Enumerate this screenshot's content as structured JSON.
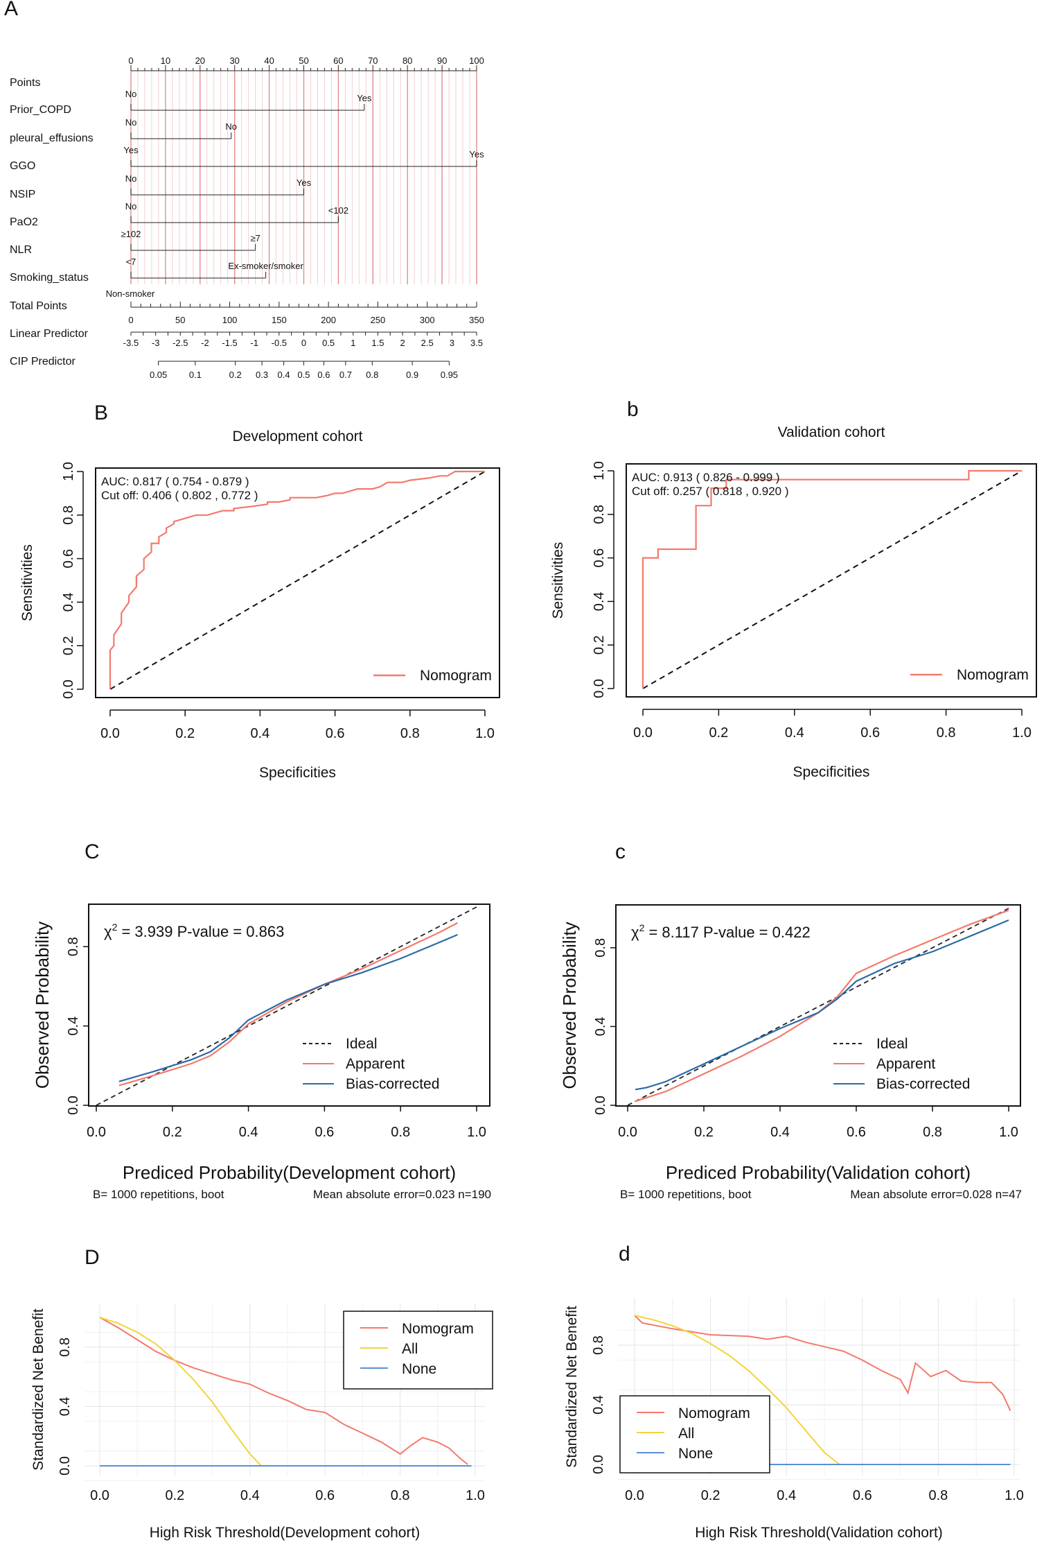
{
  "colors": {
    "nomogram": "#f4796b",
    "all": "#f2d43c",
    "none": "#5b8fd6",
    "grid": "#e8e8e8",
    "axis": "#333333",
    "redline": "#e48a8a",
    "blue": "#2a6aa8"
  },
  "chart_data": [
    {
      "panel_id": "A",
      "type": "nomogram",
      "scales": [
        {
          "name": "Points",
          "ticks": [
            "0",
            "10",
            "20",
            "30",
            "40",
            "50",
            "60",
            "70",
            "80",
            "90",
            "100"
          ],
          "tick_values": [
            0,
            10,
            20,
            30,
            40,
            50,
            60,
            70,
            80,
            90,
            100
          ]
        },
        {
          "name": "Prior_COPD",
          "levels": [
            {
              "label": "No",
              "points": 0
            },
            {
              "label": "Yes",
              "points": 67.5
            }
          ]
        },
        {
          "name": "pleural_effusions",
          "levels": [
            {
              "label": "No",
              "points": 0
            },
            {
              "label": "No",
              "points": 29
            }
          ]
        },
        {
          "name": "GGO",
          "levels": [
            {
              "label": "Yes",
              "points": 0
            },
            {
              "label": "Yes",
              "points": 100
            }
          ]
        },
        {
          "name": "NSIP",
          "levels": [
            {
              "label": "No",
              "points": 0
            },
            {
              "label": "Yes",
              "points": 50
            }
          ]
        },
        {
          "name": "PaO2",
          "levels": [
            {
              "label": "No",
              "points": 0
            },
            {
              "label": "<102",
              "points": 60
            }
          ]
        },
        {
          "name": "NLR",
          "levels": [
            {
              "label": "≥102",
              "points": 0
            },
            {
              "label": "≥7",
              "points": 36
            }
          ]
        },
        {
          "name": "Smoking_status",
          "levels": [
            {
              "label": "<7",
              "points": 0
            },
            {
              "label": "Ex-smoker/smoker",
              "points": 39
            }
          ]
        },
        {
          "name": "Total Points",
          "ticks": [
            "0",
            "50",
            "100",
            "150",
            "200",
            "250",
            "300",
            "350"
          ],
          "tick_values": [
            0,
            50,
            100,
            150,
            200,
            250,
            300,
            350
          ],
          "extra_label": "Non-smoker"
        },
        {
          "name": "Linear Predictor",
          "ticks": [
            "-3.5",
            "-3",
            "-2.5",
            "-2",
            "-1.5",
            "-1",
            "-0.5",
            "0",
            "0.5",
            "1",
            "1.5",
            "2",
            "2.5",
            "3",
            "3.5"
          ],
          "tick_values": [
            -3.5,
            -3,
            -2.5,
            -2,
            -1.5,
            -1,
            -0.5,
            0,
            0.5,
            1,
            1.5,
            2,
            2.5,
            3,
            3.5
          ]
        },
        {
          "name": "CIP Predictor",
          "ticks": [
            "0.05",
            "0.1",
            "0.2",
            "0.3",
            "0.4",
            "0.5",
            "0.6",
            "0.7",
            "0.8",
            "0.9",
            "0.95"
          ],
          "tick_values": [
            0.05,
            0.1,
            0.2,
            0.3,
            0.4,
            0.5,
            0.6,
            0.7,
            0.8,
            0.9,
            0.95
          ]
        }
      ],
      "points_range": [
        0,
        100
      ],
      "total_range": [
        0,
        350
      ],
      "lp_range": [
        -3.5,
        3.5
      ],
      "lp_per_total": 0.02
    },
    {
      "panel_id": "B",
      "type": "roc",
      "title": "Development cohort",
      "xlabel": "Specificities",
      "ylabel": "Sensitivities",
      "xlim": [
        0,
        1
      ],
      "ylim": [
        0,
        1
      ],
      "x_reversed": false,
      "ticks": [
        "0.0",
        "0.2",
        "0.4",
        "0.6",
        "0.8",
        "1.0"
      ],
      "tick_values": [
        0,
        0.2,
        0.4,
        0.6,
        0.8,
        1.0
      ],
      "auc_text": "AUC: 0.817 ( 0.754 - 0.879 )",
      "cutoff_text": "Cut off: 0.406 ( 0.802 , 0.772 )",
      "legend": "Nomogram",
      "series": [
        {
          "name": "Nomogram",
          "x": [
            0,
            0,
            0.01,
            0.01,
            0.03,
            0.03,
            0.05,
            0.05,
            0.07,
            0.07,
            0.09,
            0.09,
            0.11,
            0.11,
            0.13,
            0.13,
            0.15,
            0.15,
            0.17,
            0.17,
            0.19,
            0.19,
            0.21,
            0.21,
            0.23,
            0.23,
            0.26,
            0.3,
            0.33,
            0.33,
            0.38,
            0.42,
            0.42,
            0.45,
            0.48,
            0.48,
            0.52,
            0.55,
            0.58,
            0.6,
            0.62,
            0.66,
            0.7,
            0.72,
            0.74,
            0.78,
            0.8,
            0.85,
            0.88,
            0.9,
            0.92,
            0.97,
            1.0
          ],
          "y": [
            0,
            0.18,
            0.2,
            0.25,
            0.3,
            0.35,
            0.4,
            0.43,
            0.47,
            0.52,
            0.55,
            0.6,
            0.63,
            0.67,
            0.67,
            0.7,
            0.72,
            0.74,
            0.76,
            0.77,
            0.78,
            0.78,
            0.79,
            0.79,
            0.8,
            0.8,
            0.8,
            0.82,
            0.82,
            0.83,
            0.84,
            0.85,
            0.86,
            0.86,
            0.87,
            0.88,
            0.88,
            0.88,
            0.89,
            0.9,
            0.9,
            0.92,
            0.92,
            0.93,
            0.95,
            0.95,
            0.96,
            0.97,
            0.98,
            0.98,
            1.0,
            1.0,
            1.0
          ]
        }
      ],
      "reference_line": [
        [
          0,
          0
        ],
        [
          1,
          1
        ]
      ]
    },
    {
      "panel_id": "b",
      "type": "roc",
      "title": "Validation cohort",
      "xlabel": "Specificities",
      "ylabel": "Sensitivities",
      "xlim": [
        0,
        1
      ],
      "ylim": [
        0,
        1
      ],
      "ticks": [
        "0.0",
        "0.2",
        "0.4",
        "0.6",
        "0.8",
        "1.0"
      ],
      "tick_values": [
        0,
        0.2,
        0.4,
        0.6,
        0.8,
        1.0
      ],
      "auc_text": "AUC: 0.913 ( 0.826 - 0.999 )",
      "cutoff_text": "Cut off: 0.257 ( 0.818 , 0.920 )",
      "legend": "Nomogram",
      "series": [
        {
          "name": "Nomogram",
          "x": [
            0,
            0,
            0.04,
            0.04,
            0.14,
            0.14,
            0.18,
            0.18,
            0.22,
            0.22,
            0.86,
            0.86,
            1.0
          ],
          "y": [
            0,
            0.6,
            0.6,
            0.64,
            0.64,
            0.84,
            0.84,
            0.92,
            0.92,
            0.96,
            0.96,
            1.0,
            1.0
          ]
        }
      ],
      "reference_line": [
        [
          0,
          0
        ],
        [
          1,
          1
        ]
      ]
    },
    {
      "panel_id": "C",
      "type": "line",
      "subtype": "calibration",
      "xlabel": "Prediced Probability(Development cohort)",
      "ylabel": "Observed Probability",
      "xlim": [
        0,
        1
      ],
      "ylim": [
        0,
        1
      ],
      "x_ticks": [
        "0.0",
        "0.2",
        "0.4",
        "0.6",
        "0.8",
        "1.0"
      ],
      "y_ticks": [
        "0.0",
        "0.4",
        "0.8"
      ],
      "stat_chi": "χ",
      "stat_sup": "2",
      "stat_rest": " = 3.939  P-value = 0.863",
      "footer_left": "B= 1000 repetitions, boot",
      "footer_right": "Mean absolute error=0.023 n=190",
      "legend": [
        "Ideal",
        "Apparent",
        "Bias-corrected"
      ],
      "series": [
        {
          "name": "Ideal",
          "x": [
            0,
            1
          ],
          "y": [
            0,
            1
          ]
        },
        {
          "name": "Apparent",
          "x": [
            0.06,
            0.15,
            0.25,
            0.3,
            0.35,
            0.4,
            0.5,
            0.6,
            0.7,
            0.8,
            0.9,
            0.95
          ],
          "y": [
            0.1,
            0.15,
            0.21,
            0.25,
            0.32,
            0.41,
            0.52,
            0.61,
            0.69,
            0.78,
            0.87,
            0.92
          ]
        },
        {
          "name": "Bias-corrected",
          "x": [
            0.06,
            0.15,
            0.25,
            0.3,
            0.35,
            0.4,
            0.5,
            0.6,
            0.7,
            0.8,
            0.9,
            0.95
          ],
          "y": [
            0.12,
            0.17,
            0.23,
            0.27,
            0.34,
            0.43,
            0.53,
            0.61,
            0.67,
            0.74,
            0.82,
            0.86
          ]
        }
      ]
    },
    {
      "panel_id": "c",
      "type": "line",
      "subtype": "calibration",
      "xlabel": "Prediced Probability(Validation cohort)",
      "ylabel": "Observed Probability",
      "xlim": [
        0,
        1
      ],
      "ylim": [
        0,
        1
      ],
      "x_ticks": [
        "0.0",
        "0.2",
        "0.4",
        "0.6",
        "0.8",
        "1.0"
      ],
      "y_ticks": [
        "0.0",
        "0.4",
        "0.8"
      ],
      "stat_chi": "χ",
      "stat_sup": "2",
      "stat_rest": " = 8.117  P-value = 0.422",
      "footer_left": "B= 1000 repetitions, boot",
      "footer_right": "Mean absolute error=0.028 n=47",
      "legend": [
        "Ideal",
        "Apparent",
        "Bias-corrected"
      ],
      "series": [
        {
          "name": "Ideal",
          "x": [
            0,
            1
          ],
          "y": [
            0,
            1
          ]
        },
        {
          "name": "Apparent",
          "x": [
            0.02,
            0.1,
            0.2,
            0.3,
            0.4,
            0.5,
            0.55,
            0.6,
            0.7,
            0.8,
            0.9,
            1.0
          ],
          "y": [
            0.02,
            0.07,
            0.16,
            0.25,
            0.35,
            0.47,
            0.55,
            0.67,
            0.76,
            0.84,
            0.92,
            0.99
          ]
        },
        {
          "name": "Bias-corrected",
          "x": [
            0.02,
            0.05,
            0.1,
            0.2,
            0.3,
            0.4,
            0.5,
            0.55,
            0.6,
            0.7,
            0.8,
            0.9,
            1.0
          ],
          "y": [
            0.08,
            0.09,
            0.12,
            0.21,
            0.3,
            0.39,
            0.47,
            0.54,
            0.63,
            0.72,
            0.78,
            0.86,
            0.94
          ]
        }
      ]
    },
    {
      "panel_id": "D",
      "type": "line",
      "subtype": "decision_curve",
      "xlabel": "High Risk Threshold(Development cohort)",
      "ylabel": "Standardized Net Benefit",
      "xlim": [
        0,
        1
      ],
      "ylim": [
        0,
        1
      ],
      "x_ticks": [
        "0.0",
        "0.2",
        "0.4",
        "0.6",
        "0.8",
        "1.0"
      ],
      "y_ticks": [
        "0.0",
        "0.4",
        "0.8"
      ],
      "legend": [
        "Nomogram",
        "All",
        "None"
      ],
      "legend_position": "top-right",
      "series": [
        {
          "name": "Nomogram",
          "x": [
            0,
            0.05,
            0.1,
            0.15,
            0.2,
            0.25,
            0.3,
            0.35,
            0.4,
            0.45,
            0.5,
            0.55,
            0.6,
            0.65,
            0.7,
            0.75,
            0.8,
            0.83,
            0.86,
            0.9,
            0.93,
            0.96,
            0.98
          ],
          "y": [
            1.0,
            0.93,
            0.85,
            0.77,
            0.71,
            0.66,
            0.62,
            0.58,
            0.55,
            0.49,
            0.44,
            0.38,
            0.36,
            0.28,
            0.22,
            0.16,
            0.08,
            0.14,
            0.19,
            0.16,
            0.12,
            0.05,
            0.01
          ]
        },
        {
          "name": "All",
          "x": [
            0,
            0.05,
            0.1,
            0.15,
            0.2,
            0.25,
            0.3,
            0.35,
            0.4,
            0.43
          ],
          "y": [
            1.0,
            0.96,
            0.9,
            0.82,
            0.71,
            0.58,
            0.43,
            0.25,
            0.08,
            0.0
          ]
        },
        {
          "name": "None",
          "x": [
            0,
            0.99
          ],
          "y": [
            0,
            0
          ]
        }
      ]
    },
    {
      "panel_id": "d",
      "type": "line",
      "subtype": "decision_curve",
      "xlabel": "High Risk Threshold(Validation cohort)",
      "ylabel": "Standardized Net Benefit",
      "xlim": [
        0,
        1
      ],
      "ylim": [
        0,
        1
      ],
      "x_ticks": [
        "0.0",
        "0.2",
        "0.4",
        "0.6",
        "0.8",
        "1.0"
      ],
      "y_ticks": [
        "0.0",
        "0.4",
        "0.8"
      ],
      "legend": [
        "Nomogram",
        "All",
        "None"
      ],
      "legend_position": "bottom-left",
      "series": [
        {
          "name": "Nomogram",
          "x": [
            0,
            0.02,
            0.1,
            0.2,
            0.3,
            0.35,
            0.4,
            0.45,
            0.5,
            0.55,
            0.6,
            0.65,
            0.7,
            0.72,
            0.74,
            0.78,
            0.82,
            0.86,
            0.9,
            0.94,
            0.97,
            0.99
          ],
          "y": [
            1.0,
            0.95,
            0.91,
            0.87,
            0.86,
            0.84,
            0.86,
            0.82,
            0.79,
            0.76,
            0.7,
            0.63,
            0.57,
            0.48,
            0.68,
            0.59,
            0.63,
            0.56,
            0.55,
            0.55,
            0.47,
            0.36
          ]
        },
        {
          "name": "All",
          "x": [
            0,
            0.05,
            0.1,
            0.15,
            0.2,
            0.25,
            0.3,
            0.35,
            0.4,
            0.45,
            0.5,
            0.54
          ],
          "y": [
            1.0,
            0.97,
            0.93,
            0.88,
            0.81,
            0.73,
            0.63,
            0.51,
            0.38,
            0.23,
            0.08,
            0.0
          ]
        },
        {
          "name": "None",
          "x": [
            0.28,
            0.99
          ],
          "y": [
            0,
            0
          ]
        }
      ]
    }
  ]
}
